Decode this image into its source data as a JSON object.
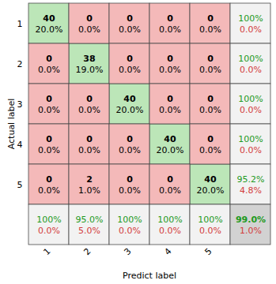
{
  "chart_data": {
    "type": "heatmap",
    "x_label": "Predict label",
    "y_label": "Actual label",
    "categories": [
      "1",
      "2",
      "3",
      "4",
      "5"
    ],
    "cells": {
      "values": [
        [
          40,
          0,
          0,
          0,
          0
        ],
        [
          0,
          38,
          0,
          0,
          0
        ],
        [
          0,
          0,
          40,
          0,
          0
        ],
        [
          0,
          0,
          0,
          40,
          0
        ],
        [
          0,
          2,
          0,
          0,
          40
        ]
      ],
      "percent": [
        [
          20.0,
          0.0,
          0.0,
          0.0,
          0.0
        ],
        [
          0.0,
          19.0,
          0.0,
          0.0,
          0.0
        ],
        [
          0.0,
          0.0,
          20.0,
          0.0,
          0.0
        ],
        [
          0.0,
          0.0,
          0.0,
          20.0,
          0.0
        ],
        [
          0.0,
          1.0,
          0.0,
          0.0,
          20.0
        ]
      ],
      "percent_labels": [
        [
          "20.0%",
          "0.0%",
          "0.0%",
          "0.0%",
          "0.0%"
        ],
        [
          "0.0%",
          "19.0%",
          "0.0%",
          "0.0%",
          "0.0%"
        ],
        [
          "0.0%",
          "0.0%",
          "20.0%",
          "0.0%",
          "0.0%"
        ],
        [
          "0.0%",
          "0.0%",
          "0.0%",
          "20.0%",
          "0.0%"
        ],
        [
          "0.0%",
          "1.0%",
          "0.0%",
          "0.0%",
          "20.0%"
        ]
      ]
    },
    "row_summary": {
      "correct": [
        100,
        100,
        100,
        100,
        95.2
      ],
      "correct_labels": [
        "100%",
        "100%",
        "100%",
        "100%",
        "95.2%"
      ],
      "error": [
        0.0,
        0.0,
        0.0,
        0.0,
        4.8
      ],
      "error_labels": [
        "0.0%",
        "0.0%",
        "0.0%",
        "0.0%",
        "4.8%"
      ]
    },
    "column_summary": {
      "correct": [
        100,
        95.0,
        100,
        100,
        100
      ],
      "correct_labels": [
        "100%",
        "95.0%",
        "100%",
        "100%",
        "100%"
      ],
      "error": [
        0.0,
        5.0,
        0.0,
        0.0,
        0.0
      ],
      "error_labels": [
        "0.0%",
        "5.0%",
        "0.0%",
        "0.0%",
        "0.0%"
      ]
    },
    "overall": {
      "correct": 99.0,
      "correct_label": "99.0%",
      "error": 1.0,
      "error_label": "1.0%"
    }
  }
}
